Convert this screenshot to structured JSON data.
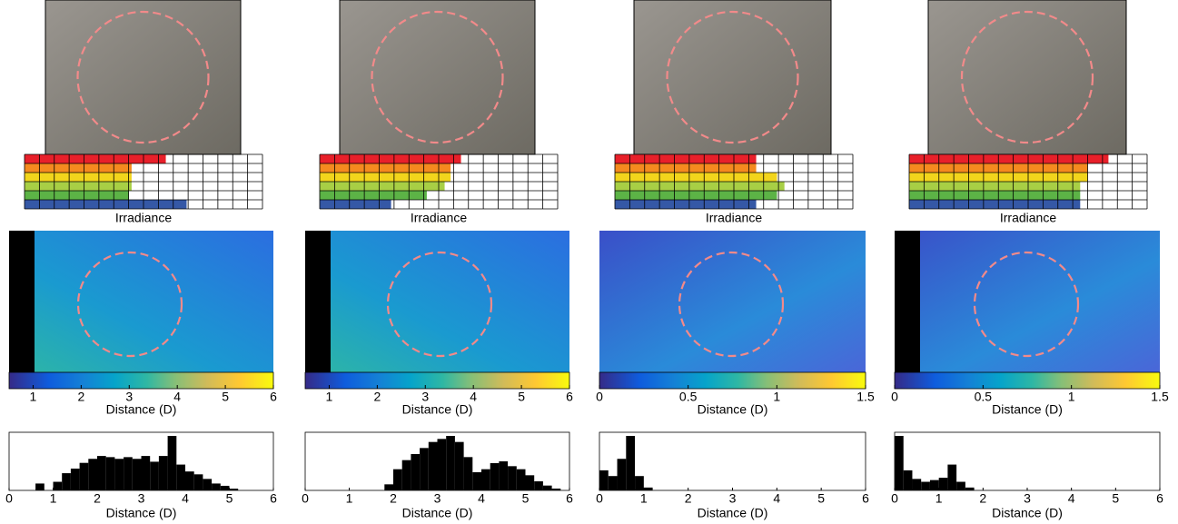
{
  "chart_data": [
    {
      "type": "bar",
      "xlabel": "Irradiance",
      "xlim": [
        0,
        16
      ],
      "values": [
        9.5,
        7.2,
        7.2,
        7.2,
        7.0,
        10.9
      ],
      "colors": [
        "#e8202a",
        "#f58a1f",
        "#f2d51c",
        "#a8cf45",
        "#5cb346",
        "#3558a6"
      ]
    },
    {
      "type": "colorbar",
      "xlabel": "Distance (D)",
      "xlim": [
        0.5,
        6
      ],
      "xticks": [
        1,
        2,
        3,
        4,
        5,
        6
      ]
    },
    {
      "type": "histogram",
      "xlabel": "Distance (D)",
      "xlim": [
        0,
        6
      ],
      "xticks": [
        0,
        1,
        2,
        3,
        4,
        5,
        6
      ],
      "color": "#000000",
      "bins": [
        0,
        0.2,
        0.4,
        0.6,
        0.8,
        1,
        1.2,
        1.4,
        1.6,
        1.8,
        2,
        2.2,
        2.4,
        2.6,
        2.8,
        3,
        3.2,
        3.4,
        3.6,
        3.8,
        4,
        4.2,
        4.4,
        4.6,
        4.8,
        5,
        5.2,
        5.4,
        5.6,
        5.8,
        6
      ],
      "values": [
        0,
        0,
        0,
        12,
        0,
        15,
        30,
        38,
        48,
        55,
        60,
        58,
        55,
        58,
        55,
        60,
        50,
        60,
        95,
        45,
        33,
        28,
        20,
        12,
        8,
        3,
        0,
        0,
        0,
        0
      ]
    },
    {
      "type": "bar",
      "xlabel": "Irradiance",
      "xlim": [
        0,
        16
      ],
      "values": [
        9.5,
        8.8,
        8.8,
        8.4,
        7.2,
        4.8
      ],
      "colors": [
        "#e8202a",
        "#f58a1f",
        "#f2d51c",
        "#a8cf45",
        "#5cb346",
        "#3558a6"
      ]
    },
    {
      "type": "colorbar",
      "xlabel": "Distance (D)",
      "xlim": [
        0.5,
        6
      ],
      "xticks": [
        1,
        2,
        3,
        4,
        5,
        6
      ]
    },
    {
      "type": "histogram",
      "xlabel": "Distance (D)",
      "xlim": [
        0,
        6
      ],
      "xticks": [
        0,
        1,
        2,
        3,
        4,
        5,
        6
      ],
      "color": "#000000",
      "bins": [
        0,
        0.2,
        0.4,
        0.6,
        0.8,
        1,
        1.2,
        1.4,
        1.6,
        1.8,
        2,
        2.2,
        2.4,
        2.6,
        2.8,
        3,
        3.2,
        3.4,
        3.6,
        3.8,
        4,
        4.2,
        4.4,
        4.6,
        4.8,
        5,
        5.2,
        5.4,
        5.6,
        5.8,
        6
      ],
      "values": [
        0,
        0,
        0,
        0,
        0,
        0,
        0,
        0,
        0,
        10,
        35,
        50,
        60,
        70,
        80,
        85,
        90,
        80,
        55,
        30,
        35,
        45,
        48,
        40,
        35,
        25,
        15,
        8,
        3,
        0
      ]
    },
    {
      "type": "bar",
      "xlabel": "Irradiance",
      "xlim": [
        0,
        16
      ],
      "values": [
        9.5,
        9.5,
        10.9,
        11.4,
        10.9,
        9.5
      ],
      "colors": [
        "#e8202a",
        "#f58a1f",
        "#f2d51c",
        "#a8cf45",
        "#5cb346",
        "#3558a6"
      ]
    },
    {
      "type": "colorbar",
      "xlabel": "Distance (D)",
      "xlim": [
        0,
        1.5
      ],
      "xticks": [
        0,
        0.5,
        1,
        1.5
      ]
    },
    {
      "type": "histogram",
      "xlabel": "Distance (D)",
      "xlim": [
        0,
        6
      ],
      "xticks": [
        0,
        1,
        2,
        3,
        4,
        5,
        6
      ],
      "color": "#000000",
      "bins": [
        0,
        0.2,
        0.4,
        0.6,
        0.8,
        1,
        1.2,
        1.4,
        1.6,
        1.8,
        2,
        2.2,
        2.4,
        2.6,
        2.8,
        3,
        3.2,
        3.4,
        3.6,
        3.8,
        4,
        4.2,
        4.4,
        4.6,
        4.8,
        5,
        5.2,
        5.4,
        5.6,
        5.8,
        6
      ],
      "values": [
        35,
        25,
        55,
        95,
        25,
        5,
        0,
        0,
        0,
        0,
        0,
        0,
        0,
        0,
        0,
        0,
        0,
        0,
        0,
        0,
        0,
        0,
        0,
        0,
        0,
        0,
        0,
        0,
        0,
        0
      ]
    },
    {
      "type": "bar",
      "xlabel": "Irradiance",
      "xlim": [
        0,
        16
      ],
      "values": [
        13.4,
        12.0,
        12.0,
        11.5,
        11.5,
        11.5
      ],
      "colors": [
        "#e8202a",
        "#f58a1f",
        "#f2d51c",
        "#a8cf45",
        "#5cb346",
        "#3558a6"
      ]
    },
    {
      "type": "colorbar",
      "xlabel": "Distance (D)",
      "xlim": [
        0,
        1.5
      ],
      "xticks": [
        0,
        0.5,
        1,
        1.5
      ]
    },
    {
      "type": "histogram",
      "xlabel": "Distance (D)",
      "xlim": [
        0,
        6
      ],
      "xticks": [
        0,
        1,
        2,
        3,
        4,
        5,
        6
      ],
      "color": "#000000",
      "bins": [
        0,
        0.2,
        0.4,
        0.6,
        0.8,
        1,
        1.2,
        1.4,
        1.6,
        1.8,
        2,
        2.2,
        2.4,
        2.6,
        2.8,
        3,
        3.2,
        3.4,
        3.6,
        3.8,
        4,
        4.2,
        4.4,
        4.6,
        4.8,
        5,
        5.2,
        5.4,
        5.6,
        5.8,
        6
      ],
      "values": [
        95,
        35,
        20,
        15,
        18,
        22,
        45,
        15,
        5,
        0,
        0,
        0,
        0,
        0,
        0,
        0,
        0,
        0,
        0,
        0,
        0,
        0,
        0,
        0,
        0,
        0,
        0,
        0,
        0,
        0
      ]
    }
  ]
}
